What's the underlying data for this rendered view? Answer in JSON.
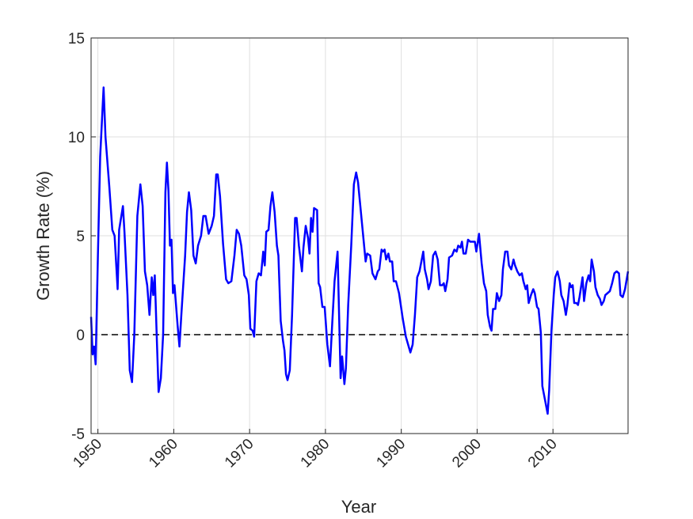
{
  "chart_data": {
    "type": "line",
    "xlabel": "Year",
    "ylabel": "Growth Rate (%)",
    "color": "#0000ff",
    "grid": true,
    "reference_line": 0,
    "xlim": [
      1949.1,
      2019.9
    ],
    "ylim": [
      -5,
      15
    ],
    "xticks": [
      1950,
      1960,
      1970,
      1980,
      1990,
      2000,
      2010
    ],
    "yticks": [
      -5,
      0,
      5,
      10,
      15
    ],
    "x": [
      1949.1,
      1949.3,
      1949.5,
      1949.7,
      1950.0,
      1950.3,
      1950.75,
      1951.0,
      1951.5,
      1951.9,
      1952.2,
      1952.6,
      1952.8,
      1953.3,
      1953.5,
      1953.9,
      1954.2,
      1954.5,
      1954.8,
      1955.2,
      1955.6,
      1955.9,
      1956.2,
      1956.5,
      1956.8,
      1957.1,
      1957.3,
      1957.5,
      1957.75,
      1958.0,
      1958.3,
      1958.6,
      1958.9,
      1959.1,
      1959.3,
      1959.5,
      1959.7,
      1959.9,
      1960.1,
      1960.5,
      1960.75,
      1961.0,
      1961.5,
      1961.75,
      1962.0,
      1962.3,
      1962.6,
      1962.9,
      1963.2,
      1963.6,
      1963.9,
      1964.2,
      1964.6,
      1965.0,
      1965.3,
      1965.6,
      1965.8,
      1966.1,
      1966.5,
      1966.9,
      1967.2,
      1967.6,
      1968.0,
      1968.3,
      1968.6,
      1968.9,
      1969.3,
      1969.6,
      1969.9,
      1970.1,
      1970.4,
      1970.6,
      1970.9,
      1971.2,
      1971.5,
      1971.8,
      1972.0,
      1972.2,
      1972.5,
      1972.75,
      1973.0,
      1973.3,
      1973.6,
      1973.8,
      1974.1,
      1974.4,
      1974.6,
      1974.8,
      1975.0,
      1975.3,
      1975.6,
      1976.0,
      1976.2,
      1976.5,
      1976.9,
      1977.1,
      1977.4,
      1977.7,
      1977.9,
      1978.1,
      1978.3,
      1978.5,
      1978.9,
      1979.1,
      1979.3,
      1979.6,
      1979.9,
      1980.25,
      1980.6,
      1980.9,
      1981.2,
      1981.6,
      1981.8,
      1982.0,
      1982.2,
      1982.5,
      1982.7,
      1983.0,
      1983.4,
      1983.75,
      1984.05,
      1984.3,
      1984.6,
      1984.9,
      1985.3,
      1985.5,
      1985.9,
      1986.2,
      1986.6,
      1986.9,
      1987.1,
      1987.4,
      1987.6,
      1987.8,
      1988.0,
      1988.3,
      1988.5,
      1988.8,
      1989.0,
      1989.3,
      1989.7,
      1990.2,
      1990.6,
      1991.2,
      1991.5,
      1991.8,
      1992.1,
      1992.4,
      1992.9,
      1993.1,
      1993.4,
      1993.6,
      1993.9,
      1994.2,
      1994.5,
      1994.8,
      1995.1,
      1995.4,
      1995.6,
      1995.8,
      1996.1,
      1996.3,
      1996.7,
      1997.0,
      1997.3,
      1997.5,
      1997.8,
      1998.0,
      1998.2,
      1998.5,
      1998.8,
      1999.1,
      1999.4,
      1999.7,
      1999.9,
      2000.25,
      2000.6,
      2000.9,
      2001.2,
      2001.4,
      2001.7,
      2001.9,
      2002.1,
      2002.4,
      2002.6,
      2002.9,
      2003.2,
      2003.4,
      2003.7,
      2004.0,
      2004.2,
      2004.5,
      2004.8,
      2005.0,
      2005.3,
      2005.6,
      2005.9,
      2006.1,
      2006.4,
      2006.6,
      2006.8,
      2007.1,
      2007.4,
      2007.6,
      2007.9,
      2008.1,
      2008.4,
      2008.6,
      2009.0,
      2009.3,
      2009.5,
      2009.8,
      2010.1,
      2010.3,
      2010.6,
      2010.9,
      2011.1,
      2011.4,
      2011.7,
      2011.9,
      2012.2,
      2012.4,
      2012.6,
      2012.8,
      2013.1,
      2013.3,
      2013.5,
      2013.9,
      2014.1,
      2014.4,
      2014.7,
      2014.9,
      2015.1,
      2015.4,
      2015.6,
      2015.9,
      2016.2,
      2016.4,
      2016.7,
      2016.9,
      2017.2,
      2017.5,
      2017.8,
      2018.1,
      2018.4,
      2018.7,
      2018.9,
      2019.2,
      2019.5,
      2019.9
    ],
    "values": [
      0.9,
      -1.0,
      -0.6,
      -1.5,
      4,
      9,
      12.5,
      10,
      7.5,
      5.3,
      5.0,
      2.3,
      5.3,
      6.5,
      5.2,
      2,
      -1.8,
      -2.4,
      0,
      6,
      7.6,
      6.5,
      3.2,
      2.5,
      1.0,
      2.9,
      2.0,
      3.0,
      0,
      -2.9,
      -2.2,
      0,
      7.2,
      8.7,
      7.3,
      4.5,
      4.8,
      2.1,
      2.5,
      0.5,
      -0.6,
      1,
      4,
      6.2,
      7.2,
      6.3,
      4,
      3.6,
      4.5,
      5.0,
      6,
      6,
      5.1,
      5.5,
      6,
      8.1,
      8.1,
      7.0,
      4.6,
      2.8,
      2.6,
      2.7,
      4,
      5.3,
      5.1,
      4.5,
      3,
      2.8,
      2,
      0.3,
      0.2,
      -0.1,
      2.7,
      3.1,
      3.0,
      4.2,
      3.5,
      5.2,
      5.3,
      6.5,
      7.2,
      6.2,
      4.5,
      4.0,
      0.7,
      -0.3,
      -0.8,
      -2,
      -2.3,
      -1.8,
      1.0,
      5.9,
      5.9,
      4.5,
      3.2,
      4.4,
      5.5,
      4.9,
      4.1,
      5.9,
      5.2,
      6.4,
      6.3,
      2.6,
      2.4,
      1.4,
      1.4,
      -0.5,
      -1.6,
      0.6,
      2.7,
      4.2,
      1.0,
      -2.2,
      -1.1,
      -2.5,
      -1.7,
      1.5,
      4.5,
      7.6,
      8.2,
      7.7,
      6.5,
      5.3,
      3.7,
      4.1,
      4.0,
      3.1,
      2.8,
      3.2,
      3.3,
      4.3,
      4.2,
      4.3,
      3.8,
      4.1,
      3.7,
      3.7,
      2.7,
      2.7,
      2.1,
      0.8,
      -0.1,
      -0.9,
      -0.5,
      1.0,
      2.9,
      3.2,
      4.2,
      3.3,
      2.8,
      2.3,
      2.7,
      4.0,
      4.2,
      3.8,
      2.5,
      2.5,
      2.6,
      2.2,
      2.8,
      3.9,
      4.0,
      4.3,
      4.2,
      4.5,
      4.4,
      4.7,
      4.1,
      4.1,
      4.8,
      4.7,
      4.7,
      4.7,
      4.2,
      5.1,
      3.6,
      2.6,
      2.2,
      1.0,
      0.4,
      0.2,
      1.3,
      1.3,
      2.1,
      1.7,
      2.0,
      3.3,
      4.2,
      4.2,
      3.5,
      3.3,
      3.8,
      3.5,
      3.2,
      3.0,
      3.1,
      2.7,
      2.3,
      2.5,
      1.6,
      2.0,
      2.3,
      2.1,
      1.4,
      1.3,
      0.1,
      -2.6,
      -3.4,
      -4.0,
      -2.8,
      0.2,
      2.0,
      2.9,
      3.2,
      2.7,
      2.0,
      1.7,
      1.0,
      1.5,
      2.6,
      2.4,
      2.5,
      1.6,
      1.6,
      1.5,
      1.9,
      2.9,
      1.7,
      2.6,
      3.0,
      2.7,
      3.8,
      3.2,
      2.4,
      2.0,
      1.8,
      1.5,
      1.7,
      2.0,
      2.1,
      2.2,
      2.6,
      3.1,
      3.2,
      3.1,
      2.0,
      1.9,
      2.3,
      3.2
    ]
  }
}
